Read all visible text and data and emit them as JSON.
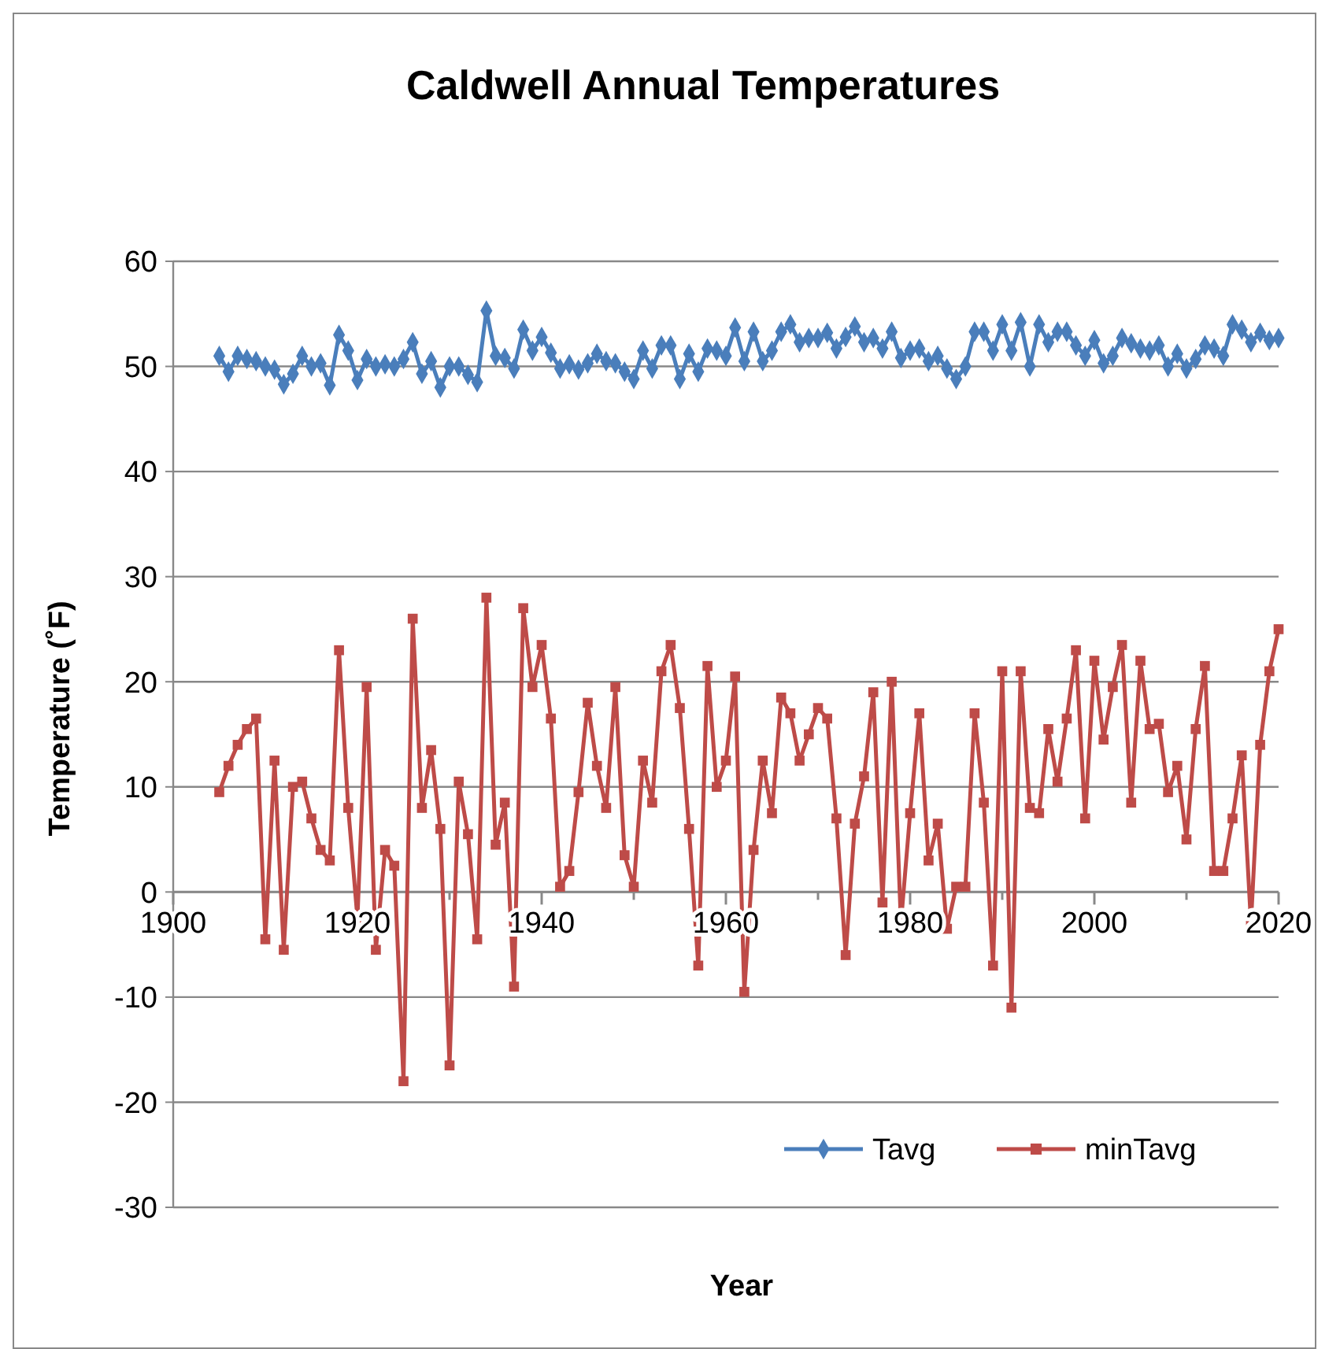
{
  "chart_data": {
    "type": "line",
    "title": "Caldwell Annual Temperatures",
    "xlabel": "Year",
    "ylabel": "Temperature (˚F)",
    "x": [
      1905,
      1906,
      1907,
      1908,
      1909,
      1910,
      1911,
      1912,
      1913,
      1914,
      1915,
      1916,
      1917,
      1918,
      1919,
      1920,
      1921,
      1922,
      1923,
      1924,
      1925,
      1926,
      1927,
      1928,
      1929,
      1930,
      1931,
      1932,
      1933,
      1934,
      1935,
      1936,
      1937,
      1938,
      1939,
      1940,
      1941,
      1942,
      1943,
      1944,
      1945,
      1946,
      1947,
      1948,
      1949,
      1950,
      1951,
      1952,
      1953,
      1954,
      1955,
      1956,
      1957,
      1958,
      1959,
      1960,
      1961,
      1962,
      1963,
      1964,
      1965,
      1966,
      1967,
      1968,
      1969,
      1970,
      1971,
      1972,
      1973,
      1974,
      1975,
      1976,
      1977,
      1978,
      1979,
      1980,
      1981,
      1982,
      1983,
      1984,
      1985,
      1986,
      1987,
      1988,
      1989,
      1990,
      1991,
      1992,
      1993,
      1994,
      1995,
      1996,
      1997,
      1998,
      1999,
      2000,
      2001,
      2002,
      2003,
      2004,
      2005,
      2006,
      2007,
      2008,
      2009,
      2010,
      2011,
      2012,
      2013,
      2014,
      2015,
      2016,
      2017,
      2018,
      2019,
      2020
    ],
    "series": [
      {
        "name": "Tavg",
        "color": "#4a7ebb",
        "marker": "diamond",
        "values": [
          51,
          49.5,
          51,
          50.7,
          50.5,
          50,
          49.7,
          48.3,
          49.3,
          51,
          50,
          50.3,
          48.2,
          53,
          51.5,
          48.7,
          50.7,
          50,
          50.2,
          50,
          50.7,
          52.3,
          49.3,
          50.5,
          48,
          50,
          50,
          49.2,
          48.5,
          55.3,
          51,
          50.8,
          49.8,
          53.5,
          51.5,
          52.8,
          51.3,
          49.8,
          50.2,
          49.7,
          50.3,
          51.2,
          50.5,
          50.3,
          49.5,
          48.8,
          51.5,
          49.8,
          52,
          52,
          48.8,
          51.2,
          49.5,
          51.7,
          51.5,
          51,
          53.7,
          50.5,
          53.3,
          50.5,
          51.5,
          53.3,
          54,
          52.3,
          52.7,
          52.7,
          53.2,
          51.7,
          52.8,
          53.8,
          52.3,
          52.7,
          51.7,
          53.3,
          50.8,
          51.5,
          51.7,
          50.5,
          51,
          49.8,
          48.8,
          50,
          53.3,
          53.3,
          51.5,
          54,
          51.5,
          54.2,
          50,
          54,
          52.3,
          53.3,
          53.3,
          52,
          51,
          52.5,
          50.3,
          51,
          52.7,
          52.2,
          51.7,
          51.5,
          52,
          50,
          51.2,
          49.8,
          50.7,
          52,
          51.7,
          51,
          54,
          53.5,
          52.3,
          53.2,
          52.5,
          52.7
        ]
      },
      {
        "name": "minTavg",
        "color": "#be4b48",
        "marker": "square",
        "values": [
          9.5,
          12,
          14,
          15.5,
          16.5,
          -4.5,
          12.5,
          -5.5,
          10,
          10.5,
          7,
          4,
          3,
          23,
          8,
          -2.5,
          19.5,
          -5.5,
          4,
          2.5,
          -18,
          26,
          8,
          13.5,
          6,
          -16.5,
          10.5,
          5.5,
          -4.5,
          28,
          4.5,
          8.5,
          -9,
          27,
          19.5,
          23.5,
          16.5,
          0.5,
          2,
          9.5,
          18,
          12,
          8,
          19.5,
          3.5,
          0.5,
          12.5,
          8.5,
          21,
          23.5,
          17.5,
          6,
          -7,
          21.5,
          10,
          12.5,
          20.5,
          -9.5,
          4,
          12.5,
          7.5,
          18.5,
          17,
          12.5,
          15,
          17.5,
          16.5,
          7,
          -6,
          6.5,
          11,
          19,
          -1,
          20,
          -3,
          7.5,
          17,
          3,
          6.5,
          -3.5,
          0.5,
          0.5,
          17,
          8.5,
          -7,
          21,
          -11,
          21,
          8,
          7.5,
          15.5,
          10.5,
          16.5,
          23,
          7,
          22,
          14.5,
          19.5,
          23.5,
          8.5,
          22,
          15.5,
          16,
          9.5,
          12,
          5,
          15.5,
          21.5,
          2,
          2,
          7,
          13,
          -3,
          14,
          21,
          25
        ]
      }
    ],
    "xlim": [
      1900,
      2020
    ],
    "xticks": [
      1900,
      {
        "value": 1910,
        "label": null
      },
      1920,
      {
        "value": 1930,
        "label": null
      },
      1940,
      {
        "value": 1950,
        "label": null
      },
      1960,
      {
        "value": 1970,
        "label": null
      },
      1980,
      {
        "value": 1990,
        "label": null
      },
      2000,
      {
        "value": 2010,
        "label": null
      },
      2020
    ],
    "ylim": [
      -30,
      60
    ],
    "yticks": [
      -30,
      -20,
      -10,
      0,
      10,
      20,
      30,
      40,
      50,
      60
    ],
    "grid": "y",
    "legend": "bottom right",
    "line_style": "solid"
  }
}
